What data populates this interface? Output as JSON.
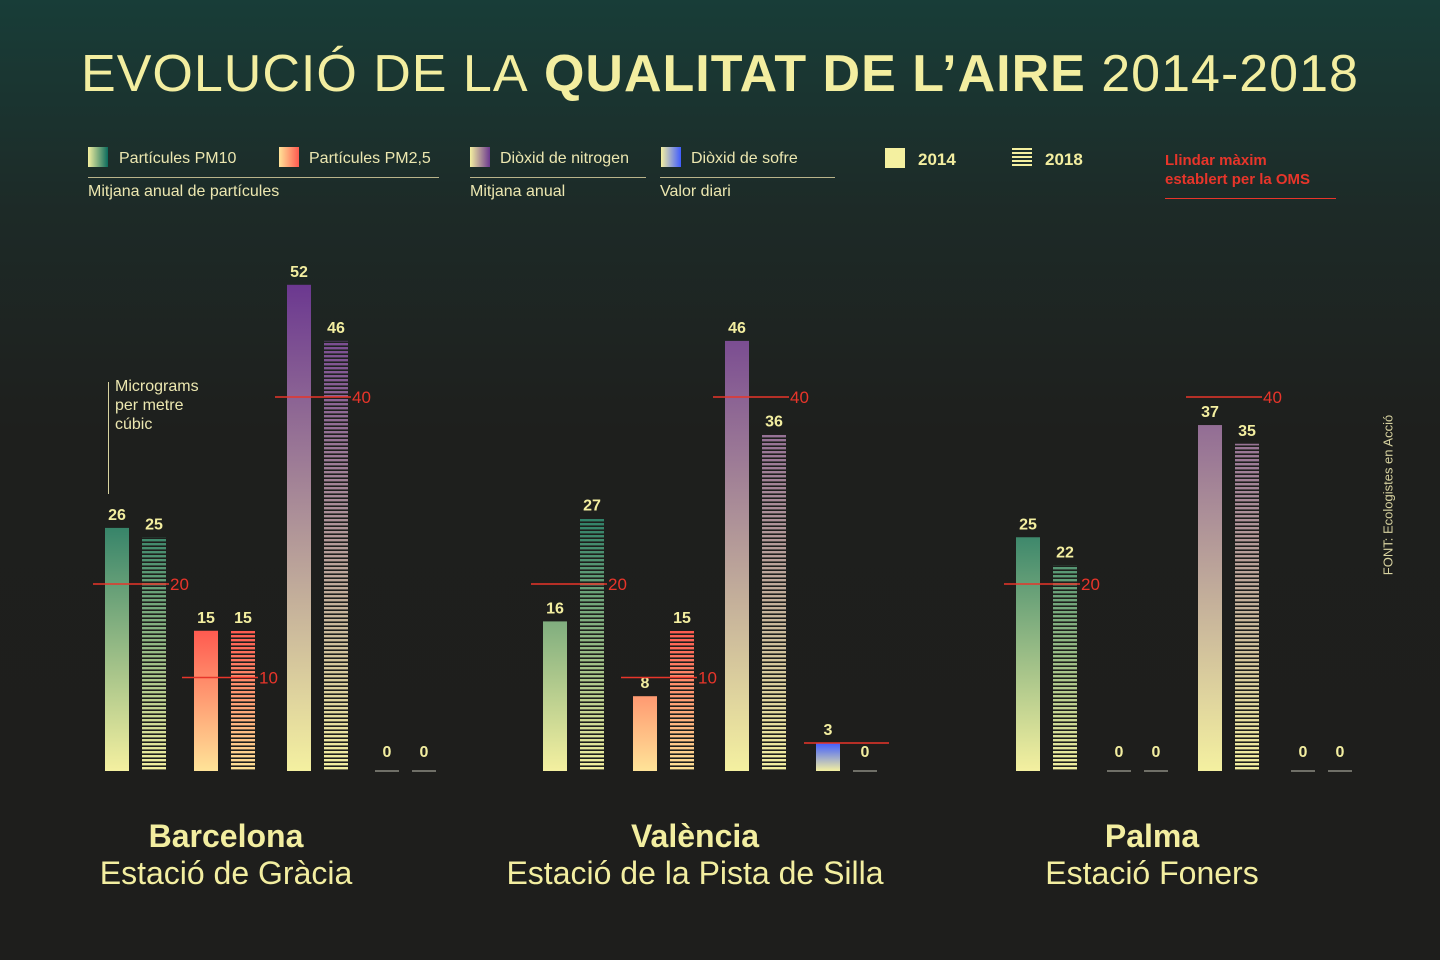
{
  "title": {
    "light_1": "EVOLUCIÓ DE LA",
    "bold": "QUALITAT DE L’AIRE",
    "light_2": "2014-2018"
  },
  "legend": {
    "pollutants": [
      {
        "label": "Partícules PM10",
        "top": "#0b6b5d",
        "bottom": "#f4f0a0"
      },
      {
        "label": "Partícules PM2,5",
        "top": "#ff5a50",
        "bottom": "#ffe398"
      },
      {
        "label": "Diòxid de nitrogen",
        "top": "#6b3890",
        "bottom": "#f4f0a0"
      },
      {
        "label": "Diòxid de sofre",
        "top": "#3f5cff",
        "bottom": "#f4f0a0"
      }
    ],
    "groups": [
      "Mitjana anual de partícules",
      "Mitjana anual",
      "Valor diari"
    ],
    "years": [
      "2014",
      "2018"
    ],
    "threshold_label_1": "Llindar màxim",
    "threshold_label_2": "establert per la OMS",
    "threshold_color": "#e8352a"
  },
  "unit_label": [
    "Micrograms",
    "per metre",
    "cúbic"
  ],
  "source": "FONT: Ecologistes en Acció",
  "chart_data": {
    "type": "bar",
    "title": "Evolució de la qualitat de l'aire 2014-2018",
    "ylabel": "Micrograms per metre cúbic",
    "ylim": [
      0,
      52
    ],
    "series_names": [
      "2014",
      "2018"
    ],
    "pollutants": [
      "PM10",
      "PM2,5",
      "NO2",
      "SO2"
    ],
    "cities": [
      {
        "name": "Barcelona",
        "station": "Estació de Gràcia",
        "values": {
          "PM10": [
            26,
            25
          ],
          "PM2,5": [
            15,
            15
          ],
          "NO2": [
            52,
            46
          ],
          "SO2": [
            0,
            0
          ]
        },
        "thresholds": {
          "PM10": 20,
          "PM2,5": 10,
          "NO2": 40
        }
      },
      {
        "name": "València",
        "station": "Estació de la Pista de Silla",
        "values": {
          "PM10": [
            16,
            27
          ],
          "PM2,5": [
            8,
            15
          ],
          "NO2": [
            46,
            36
          ],
          "SO2": [
            3,
            0
          ]
        },
        "thresholds": {
          "PM10": 20,
          "PM2,5": 10,
          "NO2": 40,
          "SO2": 3
        }
      },
      {
        "name": "Palma",
        "station": "Estació Foners",
        "values": {
          "PM10": [
            25,
            22
          ],
          "PM2,5": [
            0,
            0
          ],
          "NO2": [
            37,
            35
          ],
          "SO2": [
            0,
            0
          ]
        },
        "thresholds": {
          "PM10": 20,
          "NO2": 40
        }
      }
    ]
  }
}
